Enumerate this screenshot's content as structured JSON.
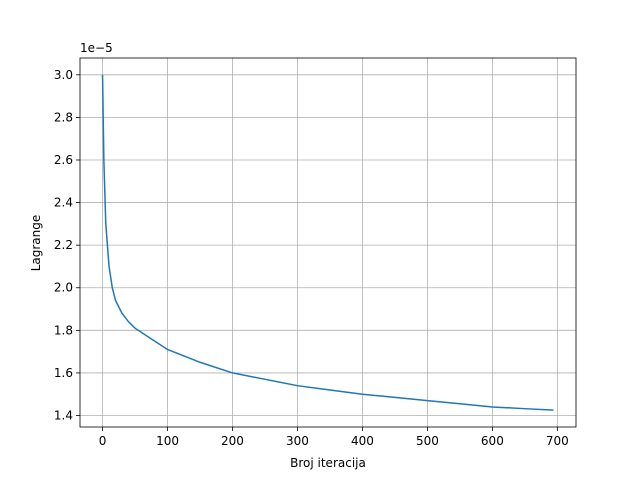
{
  "chart_data": {
    "type": "line",
    "x_label": "Broj iteracija",
    "y_label": "Lagrange",
    "y_offset_text": "1e−5",
    "x": [
      0,
      2,
      5,
      10,
      15,
      20,
      30,
      40,
      50,
      75,
      100,
      150,
      200,
      250,
      300,
      350,
      400,
      450,
      500,
      550,
      600,
      650,
      694
    ],
    "series": [
      {
        "name": "Lagrange",
        "color": "#1f77b4",
        "values": [
          3.0,
          2.6,
          2.3,
          2.1,
          2.0,
          1.94,
          1.88,
          1.84,
          1.81,
          1.76,
          1.71,
          1.65,
          1.6,
          1.57,
          1.54,
          1.52,
          1.5,
          1.485,
          1.47,
          1.455,
          1.44,
          1.432,
          1.425
        ]
      }
    ],
    "xlim": [
      -34.7,
      728.7
    ],
    "ylim": [
      1.346,
      3.079
    ],
    "xticks": [
      0,
      100,
      200,
      300,
      400,
      500,
      600,
      700
    ],
    "yticks": [
      {
        "value": 1.4,
        "label": "1.4"
      },
      {
        "value": 1.6,
        "label": "1.6"
      },
      {
        "value": 1.8,
        "label": "1.8"
      },
      {
        "value": 2.0,
        "label": "2.0"
      },
      {
        "value": 2.2,
        "label": "2.2"
      },
      {
        "value": 2.4,
        "label": "2.4"
      },
      {
        "value": 2.6,
        "label": "2.6"
      },
      {
        "value": 2.8,
        "label": "2.8"
      },
      {
        "value": 3.0,
        "label": "3.0"
      }
    ],
    "grid": true
  }
}
